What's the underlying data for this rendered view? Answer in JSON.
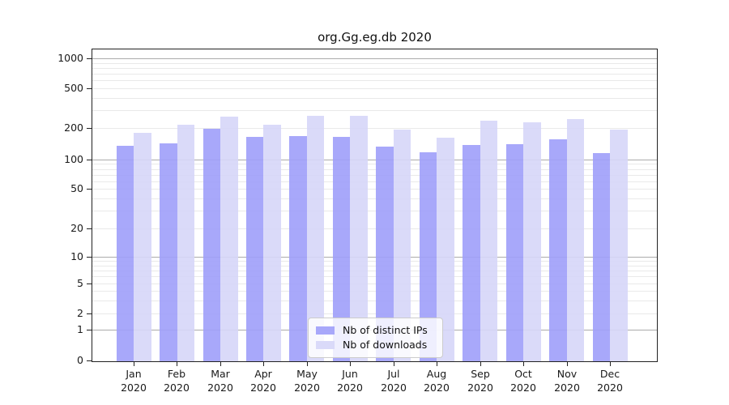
{
  "title": "org.Gg.eg.db 2020",
  "colors": {
    "distinct_ips": "#9f9ffa",
    "downloads": "#d6d6f8",
    "axis": "#222222",
    "grid_minor": "#e9e9e9",
    "grid_major": "#ababab"
  },
  "y_axis": {
    "tick_labels": [
      "1000",
      "500",
      "200",
      "100",
      "50",
      "20",
      "10",
      "5",
      "2",
      "1",
      "0"
    ]
  },
  "x_axis": {
    "months": [
      "Jan",
      "Feb",
      "Mar",
      "Apr",
      "May",
      "Jun",
      "Jul",
      "Aug",
      "Sep",
      "Oct",
      "Nov",
      "Dec"
    ],
    "year": "2020"
  },
  "legend": {
    "items": [
      {
        "label": "Nb of distinct IPs",
        "color_key": "distinct_ips"
      },
      {
        "label": "Nb of downloads",
        "color_key": "downloads"
      }
    ]
  },
  "chart_data": {
    "type": "bar",
    "title": "org.Gg.eg.db 2020",
    "categories": [
      "Jan 2020",
      "Feb 2020",
      "Mar 2020",
      "Apr 2020",
      "May 2020",
      "Jun 2020",
      "Jul 2020",
      "Aug 2020",
      "Sep 2020",
      "Oct 2020",
      "Nov 2020",
      "Dec 2020"
    ],
    "series": [
      {
        "name": "Nb of distinct IPs",
        "color": "#9f9ffa",
        "values": [
          135,
          142,
          197,
          164,
          169,
          166,
          134,
          117,
          138,
          141,
          156,
          115
        ]
      },
      {
        "name": "Nb of downloads",
        "color": "#d6d6f8",
        "values": [
          181,
          215,
          259,
          217,
          265,
          267,
          193,
          162,
          236,
          230,
          247,
          194
        ]
      }
    ],
    "yscale": "log (with zero baseline)",
    "yticks": [
      0,
      1,
      2,
      5,
      10,
      20,
      50,
      100,
      200,
      500,
      1000
    ],
    "ylim": [
      0,
      1000
    ],
    "grid": "horizontal",
    "legend_position": "inside bottom-center"
  }
}
